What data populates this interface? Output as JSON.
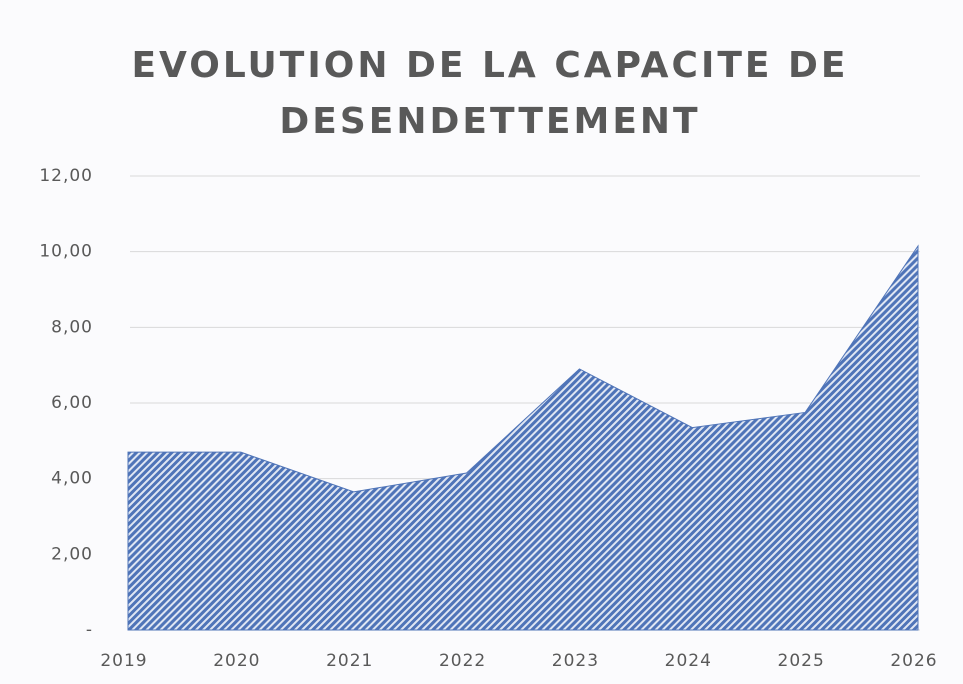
{
  "chart_data": {
    "type": "area",
    "title": "EVOLUTION DE LA CAPACITE DE DESENDETTEMENT",
    "categories": [
      "2019",
      "2020",
      "2021",
      "2022",
      "2023",
      "2024",
      "2025",
      "2026"
    ],
    "values": [
      4.7,
      4.7,
      3.65,
      4.15,
      6.9,
      5.35,
      5.75,
      10.15
    ],
    "color": "#4f74b8",
    "ylim": [
      0,
      12
    ],
    "yticks": [
      {
        "value": 0,
        "label": "-"
      },
      {
        "value": 2,
        "label": "2,00"
      },
      {
        "value": 4,
        "label": "4,00"
      },
      {
        "value": 6,
        "label": "6,00"
      },
      {
        "value": 8,
        "label": "8,00"
      },
      {
        "value": 10,
        "label": "10,00"
      },
      {
        "value": 12,
        "label": "12,00"
      }
    ],
    "grid": true
  }
}
